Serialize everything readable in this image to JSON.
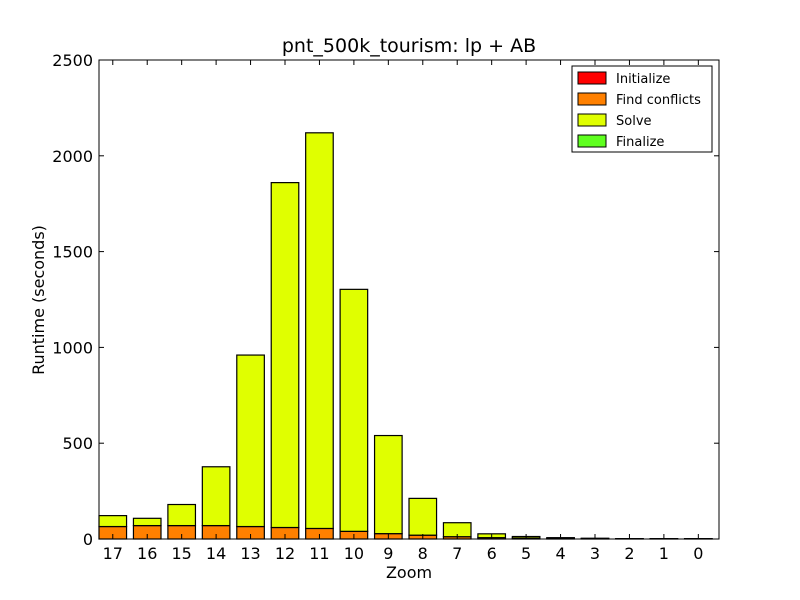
{
  "chart_data": {
    "type": "bar",
    "stacked": true,
    "title": "pnt_500k_tourism: lp + AB",
    "xlabel": "Zoom",
    "ylabel": "Runtime (seconds)",
    "ylim": [
      0,
      2500
    ],
    "yticks": [
      0,
      500,
      1000,
      1500,
      2000,
      2500
    ],
    "categories": [
      "17",
      "16",
      "15",
      "14",
      "13",
      "12",
      "11",
      "10",
      "9",
      "8",
      "7",
      "6",
      "5",
      "4",
      "3",
      "2",
      "1",
      "0"
    ],
    "series": [
      {
        "name": "Initialize",
        "color": "#ff0000",
        "values": [
          0,
          0,
          0,
          0,
          0,
          0,
          0,
          0,
          0,
          0,
          0,
          0,
          0,
          0,
          0,
          0,
          0,
          0
        ]
      },
      {
        "name": "Find conflicts",
        "color": "#ff8000",
        "values": [
          65,
          70,
          70,
          70,
          65,
          60,
          55,
          40,
          28,
          20,
          12,
          7,
          5,
          3,
          2,
          1,
          1,
          1
        ]
      },
      {
        "name": "Solve",
        "color": "#e0ff00",
        "values": [
          57,
          38,
          110,
          307,
          895,
          1800,
          2065,
          1263,
          512,
          192,
          73,
          20,
          8,
          4,
          2,
          1,
          1,
          1
        ]
      },
      {
        "name": "Finalize",
        "color": "#5fff1f",
        "values": [
          0,
          0,
          0,
          0,
          0,
          0,
          0,
          0,
          0,
          0,
          0,
          0,
          0,
          0,
          0,
          0,
          0,
          0
        ]
      }
    ],
    "legend_position": "top-right",
    "grid": false
  }
}
